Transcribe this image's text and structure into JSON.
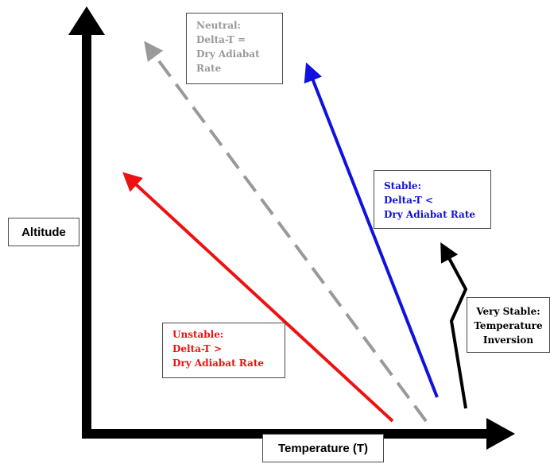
{
  "axes": {
    "y_label": "Altitude",
    "x_label": "Temperature (T)"
  },
  "colors": {
    "unstable": "#ee1111",
    "neutral": "#999999",
    "stable": "#1111dd",
    "very_stable": "#000000",
    "axis": "#000000"
  },
  "boxes": {
    "neutral": {
      "line1": "Neutral:",
      "line2": "Delta-T  =",
      "line3": "Dry Adiabat",
      "line4": "Rate"
    },
    "stable": {
      "line1": "Stable:",
      "line2": "Delta-T   <",
      "line3": "Dry Adiabat Rate"
    },
    "unstable": {
      "line1": "Unstable:",
      "line2": "Delta-T   >",
      "line3": "Dry Adiabat Rate"
    },
    "very_stable": {
      "line1": "Very Stable:",
      "line2": "Temperature",
      "line3": "Inversion"
    }
  }
}
